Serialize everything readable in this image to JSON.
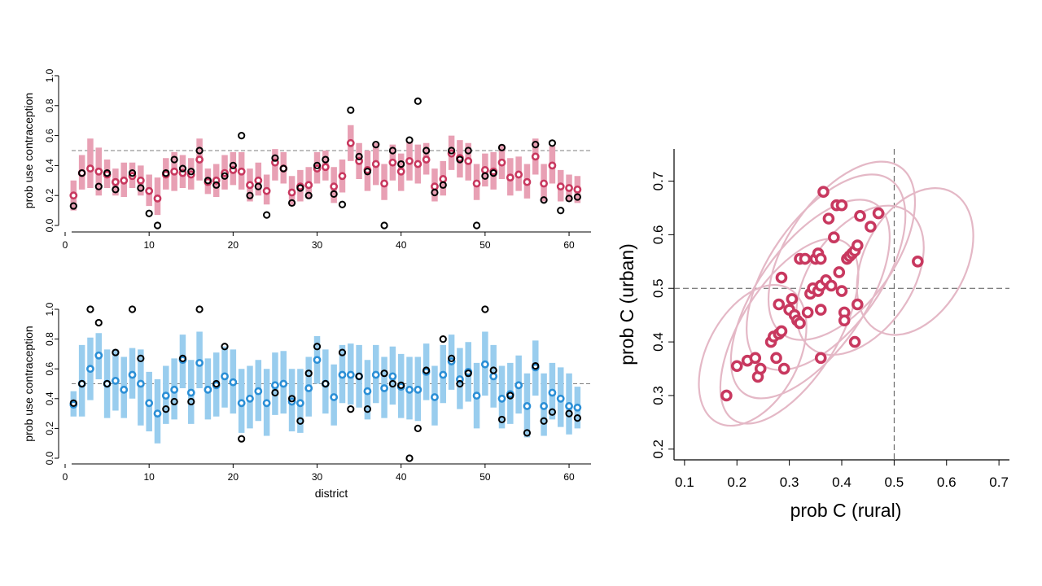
{
  "colors": {
    "rural_point": "#c8385f",
    "rural_interval": "#e8a0b4",
    "urban_point": "#2b8fd6",
    "urban_interval": "#99cdee",
    "observed": "#000000",
    "ellipse": "#e4b8c6",
    "reference_line": "#555555"
  },
  "chart_data": [
    {
      "type": "scatter",
      "panel": "rural-district-estimates",
      "title": "",
      "xlabel": "",
      "ylabel": "prob use contraception",
      "xlim": [
        0,
        63
      ],
      "ylim": [
        0,
        1
      ],
      "xticks": [
        0,
        10,
        20,
        30,
        40,
        50,
        60
      ],
      "yticks": [
        0.0,
        0.2,
        0.4,
        0.6,
        0.8,
        1.0
      ],
      "ytick_labels": [
        "0.0",
        "0.2",
        "0.4",
        "0.6",
        "0.8",
        "1.0"
      ],
      "reference_y": 0.5,
      "district": [
        1,
        2,
        3,
        4,
        5,
        6,
        7,
        8,
        9,
        10,
        11,
        12,
        13,
        14,
        15,
        16,
        17,
        18,
        19,
        20,
        21,
        22,
        23,
        24,
        25,
        26,
        27,
        28,
        29,
        30,
        31,
        32,
        33,
        34,
        35,
        36,
        37,
        38,
        39,
        40,
        41,
        42,
        43,
        44,
        45,
        46,
        47,
        48,
        49,
        50,
        51,
        52,
        53,
        54,
        55,
        56,
        57,
        58,
        59,
        60,
        61
      ],
      "estimate": [
        0.2,
        0.35,
        0.38,
        0.36,
        0.34,
        0.29,
        0.3,
        0.33,
        0.3,
        0.23,
        0.18,
        0.34,
        0.36,
        0.35,
        0.34,
        0.44,
        0.29,
        0.3,
        0.35,
        0.37,
        0.36,
        0.27,
        0.3,
        0.23,
        0.42,
        0.38,
        0.22,
        0.26,
        0.27,
        0.38,
        0.39,
        0.26,
        0.33,
        0.55,
        0.43,
        0.37,
        0.41,
        0.28,
        0.42,
        0.36,
        0.43,
        0.41,
        0.44,
        0.26,
        0.31,
        0.48,
        0.45,
        0.43,
        0.28,
        0.37,
        0.36,
        0.42,
        0.32,
        0.34,
        0.29,
        0.46,
        0.28,
        0.4,
        0.26,
        0.25,
        0.24
      ],
      "lower": [
        0.1,
        0.24,
        0.25,
        0.2,
        0.25,
        0.2,
        0.19,
        0.25,
        0.2,
        0.13,
        0.07,
        0.24,
        0.23,
        0.25,
        0.24,
        0.3,
        0.21,
        0.19,
        0.24,
        0.27,
        0.24,
        0.16,
        0.2,
        0.14,
        0.3,
        0.28,
        0.13,
        0.16,
        0.18,
        0.28,
        0.3,
        0.15,
        0.22,
        0.43,
        0.31,
        0.23,
        0.27,
        0.17,
        0.3,
        0.23,
        0.3,
        0.28,
        0.34,
        0.16,
        0.2,
        0.37,
        0.32,
        0.3,
        0.17,
        0.26,
        0.24,
        0.31,
        0.2,
        0.23,
        0.18,
        0.34,
        0.16,
        0.28,
        0.16,
        0.16,
        0.15
      ],
      "upper": [
        0.3,
        0.47,
        0.58,
        0.52,
        0.44,
        0.38,
        0.42,
        0.42,
        0.4,
        0.34,
        0.32,
        0.45,
        0.49,
        0.47,
        0.45,
        0.58,
        0.38,
        0.41,
        0.47,
        0.49,
        0.49,
        0.38,
        0.42,
        0.34,
        0.51,
        0.49,
        0.33,
        0.37,
        0.39,
        0.49,
        0.5,
        0.39,
        0.44,
        0.67,
        0.55,
        0.5,
        0.55,
        0.41,
        0.54,
        0.48,
        0.56,
        0.54,
        0.55,
        0.38,
        0.43,
        0.6,
        0.57,
        0.55,
        0.41,
        0.48,
        0.49,
        0.54,
        0.45,
        0.46,
        0.41,
        0.58,
        0.41,
        0.53,
        0.37,
        0.34,
        0.33
      ],
      "observed": [
        0.13,
        0.35,
        null,
        0.26,
        0.35,
        0.24,
        null,
        0.35,
        0.25,
        0.08,
        0.0,
        0.35,
        0.44,
        0.38,
        0.36,
        0.5,
        0.3,
        0.27,
        0.33,
        0.4,
        0.6,
        0.2,
        0.26,
        0.07,
        0.45,
        0.38,
        0.15,
        0.25,
        0.2,
        0.4,
        0.44,
        0.21,
        0.14,
        0.77,
        0.46,
        0.36,
        0.54,
        0.0,
        0.5,
        0.41,
        0.57,
        0.83,
        0.5,
        0.22,
        0.27,
        0.5,
        0.44,
        0.5,
        0.0,
        0.33,
        0.35,
        0.52,
        null,
        null,
        null,
        0.54,
        0.17,
        0.55,
        0.1,
        0.18,
        0.19
      ]
    },
    {
      "type": "scatter",
      "panel": "urban-district-estimates",
      "title": "",
      "xlabel": "district",
      "ylabel": "prob use contraception",
      "xlim": [
        0,
        63
      ],
      "ylim": [
        0,
        1
      ],
      "xticks": [
        0,
        10,
        20,
        30,
        40,
        50,
        60
      ],
      "yticks": [
        0.0,
        0.2,
        0.4,
        0.6,
        0.8,
        1.0
      ],
      "ytick_labels": [
        "0.0",
        "0.2",
        "0.4",
        "0.6",
        "0.8",
        "1.0"
      ],
      "reference_y": 0.5,
      "district": [
        1,
        2,
        3,
        4,
        5,
        6,
        7,
        8,
        9,
        10,
        11,
        12,
        13,
        14,
        15,
        16,
        17,
        18,
        19,
        20,
        21,
        22,
        23,
        24,
        25,
        26,
        27,
        28,
        29,
        30,
        31,
        32,
        33,
        34,
        35,
        36,
        37,
        38,
        39,
        40,
        41,
        42,
        43,
        44,
        45,
        46,
        47,
        48,
        49,
        50,
        51,
        52,
        53,
        54,
        55,
        56,
        57,
        58,
        59,
        60,
        61
      ],
      "estimate": [
        0.36,
        0.5,
        0.6,
        0.69,
        0.5,
        0.52,
        0.46,
        0.56,
        0.5,
        0.37,
        0.3,
        0.42,
        0.46,
        0.66,
        0.44,
        0.64,
        0.46,
        0.49,
        0.55,
        0.51,
        0.37,
        0.4,
        0.45,
        0.37,
        0.49,
        0.5,
        0.38,
        0.37,
        0.47,
        0.66,
        0.5,
        0.41,
        0.56,
        0.56,
        0.55,
        0.45,
        0.56,
        0.47,
        0.55,
        0.48,
        0.46,
        0.46,
        0.58,
        0.41,
        0.56,
        0.65,
        0.53,
        0.58,
        0.42,
        0.63,
        0.55,
        0.4,
        0.43,
        0.49,
        0.35,
        0.61,
        0.35,
        0.44,
        0.4,
        0.35,
        0.34
      ],
      "lower": [
        0.28,
        0.28,
        0.39,
        0.53,
        0.27,
        0.32,
        0.27,
        0.4,
        0.22,
        0.18,
        0.1,
        0.23,
        0.26,
        0.47,
        0.23,
        0.47,
        0.26,
        0.28,
        0.34,
        0.3,
        0.17,
        0.2,
        0.25,
        0.15,
        0.29,
        0.3,
        0.18,
        0.17,
        0.28,
        0.5,
        0.3,
        0.22,
        0.37,
        0.36,
        0.34,
        0.26,
        0.37,
        0.27,
        0.36,
        0.27,
        0.26,
        0.25,
        0.39,
        0.22,
        0.37,
        0.46,
        0.33,
        0.38,
        0.2,
        0.42,
        0.34,
        0.2,
        0.23,
        0.3,
        0.14,
        0.42,
        0.15,
        0.26,
        0.21,
        0.16,
        0.2
      ],
      "upper": [
        0.45,
        0.76,
        0.81,
        0.84,
        0.73,
        0.73,
        0.68,
        0.74,
        0.73,
        0.58,
        0.53,
        0.62,
        0.67,
        0.83,
        0.66,
        0.85,
        0.67,
        0.71,
        0.75,
        0.73,
        0.6,
        0.62,
        0.66,
        0.6,
        0.71,
        0.72,
        0.6,
        0.6,
        0.68,
        0.82,
        0.73,
        0.63,
        0.76,
        0.77,
        0.76,
        0.66,
        0.76,
        0.68,
        0.75,
        0.7,
        0.68,
        0.68,
        0.77,
        0.62,
        0.76,
        0.83,
        0.74,
        0.78,
        0.64,
        0.85,
        0.76,
        0.62,
        0.64,
        0.69,
        0.57,
        0.79,
        0.57,
        0.64,
        0.61,
        0.57,
        0.48
      ],
      "observed": [
        0.37,
        0.5,
        1.0,
        0.91,
        0.5,
        0.71,
        null,
        1.0,
        0.67,
        null,
        null,
        0.33,
        0.38,
        0.67,
        0.38,
        1.0,
        null,
        0.5,
        0.75,
        null,
        0.13,
        null,
        null,
        null,
        0.44,
        null,
        0.4,
        0.25,
        0.57,
        0.75,
        0.5,
        null,
        0.71,
        0.33,
        0.55,
        0.33,
        null,
        0.57,
        0.5,
        0.49,
        0.0,
        0.2,
        0.59,
        null,
        0.8,
        0.67,
        0.5,
        0.57,
        null,
        1.0,
        0.59,
        0.26,
        0.42,
        null,
        0.17,
        0.62,
        0.25,
        0.31,
        null,
        0.3,
        0.27
      ]
    },
    {
      "type": "scatter",
      "panel": "rural-vs-urban",
      "title": "",
      "xlabel": "prob C (rural)",
      "ylabel": "prob C (urban)",
      "xlim": [
        0.08,
        0.72
      ],
      "ylim": [
        0.18,
        0.76
      ],
      "xticks": [
        0.1,
        0.2,
        0.3,
        0.4,
        0.5,
        0.6,
        0.7
      ],
      "xtick_labels": [
        "0.1",
        "0.2",
        "0.3",
        "0.4",
        "0.5",
        "0.6",
        "0.7"
      ],
      "yticks": [
        0.2,
        0.3,
        0.4,
        0.5,
        0.6,
        0.7
      ],
      "ytick_labels": [
        "0.2",
        "0.3",
        "0.4",
        "0.5",
        "0.6",
        "0.7"
      ],
      "reference_x": 0.5,
      "reference_y": 0.5,
      "points": [
        [
          0.18,
          0.3
        ],
        [
          0.2,
          0.355
        ],
        [
          0.22,
          0.365
        ],
        [
          0.235,
          0.37
        ],
        [
          0.24,
          0.335
        ],
        [
          0.245,
          0.35
        ],
        [
          0.265,
          0.4
        ],
        [
          0.27,
          0.41
        ],
        [
          0.275,
          0.37
        ],
        [
          0.28,
          0.415
        ],
        [
          0.285,
          0.42
        ],
        [
          0.28,
          0.47
        ],
        [
          0.29,
          0.35
        ],
        [
          0.285,
          0.52
        ],
        [
          0.3,
          0.46
        ],
        [
          0.31,
          0.45
        ],
        [
          0.305,
          0.48
        ],
        [
          0.315,
          0.44
        ],
        [
          0.32,
          0.435
        ],
        [
          0.32,
          0.555
        ],
        [
          0.33,
          0.555
        ],
        [
          0.335,
          0.455
        ],
        [
          0.34,
          0.49
        ],
        [
          0.345,
          0.5
        ],
        [
          0.35,
          0.555
        ],
        [
          0.355,
          0.495
        ],
        [
          0.355,
          0.565
        ],
        [
          0.36,
          0.505
        ],
        [
          0.36,
          0.555
        ],
        [
          0.36,
          0.46
        ],
        [
          0.36,
          0.37
        ],
        [
          0.365,
          0.68
        ],
        [
          0.37,
          0.515
        ],
        [
          0.375,
          0.63
        ],
        [
          0.38,
          0.505
        ],
        [
          0.385,
          0.595
        ],
        [
          0.39,
          0.655
        ],
        [
          0.395,
          0.53
        ],
        [
          0.4,
          0.495
        ],
        [
          0.4,
          0.655
        ],
        [
          0.405,
          0.455
        ],
        [
          0.405,
          0.44
        ],
        [
          0.41,
          0.555
        ],
        [
          0.415,
          0.56
        ],
        [
          0.42,
          0.565
        ],
        [
          0.425,
          0.57
        ],
        [
          0.43,
          0.58
        ],
        [
          0.425,
          0.4
        ],
        [
          0.43,
          0.47
        ],
        [
          0.435,
          0.635
        ],
        [
          0.455,
          0.615
        ],
        [
          0.47,
          0.64
        ],
        [
          0.545,
          0.55
        ]
      ],
      "ellipses": [
        {
          "cx": 0.23,
          "cy": 0.375,
          "rx": 0.145,
          "ry": 0.085,
          "angle_deg": -62
        },
        {
          "cx": 0.3,
          "cy": 0.42,
          "rx": 0.2,
          "ry": 0.09,
          "angle_deg": -58
        },
        {
          "cx": 0.34,
          "cy": 0.48,
          "rx": 0.22,
          "ry": 0.1,
          "angle_deg": -55
        },
        {
          "cx": 0.37,
          "cy": 0.53,
          "rx": 0.215,
          "ry": 0.105,
          "angle_deg": -55
        },
        {
          "cx": 0.4,
          "cy": 0.57,
          "rx": 0.195,
          "ry": 0.1,
          "angle_deg": -55
        },
        {
          "cx": 0.435,
          "cy": 0.515,
          "rx": 0.16,
          "ry": 0.095,
          "angle_deg": -55
        },
        {
          "cx": 0.54,
          "cy": 0.55,
          "rx": 0.15,
          "ry": 0.095,
          "angle_deg": -62
        }
      ]
    }
  ]
}
